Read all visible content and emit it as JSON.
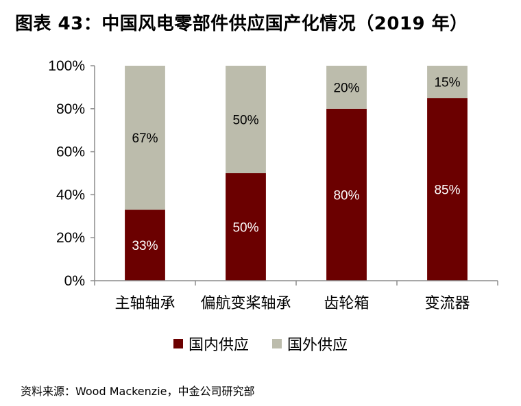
{
  "title": "图表 43：中国风电零部件供应国产化情况（2019 年）",
  "source": "资料来源：Wood Mackenzie，中金公司研究部",
  "colors": {
    "domestic": "#6b0000",
    "foreign": "#bcbcac",
    "axis": "#8c8c8c"
  },
  "chart_data": {
    "type": "bar",
    "stacked": true,
    "title": "图表 43：中国风电零部件供应国产化情况（2019 年）",
    "categories": [
      "主轴轴承",
      "偏航变桨轴承",
      "齿轮箱",
      "变流器"
    ],
    "series": [
      {
        "name": "国内供应",
        "values": [
          33,
          50,
          80,
          85
        ],
        "labels": [
          "33%",
          "50%",
          "80%",
          "85%"
        ]
      },
      {
        "name": "国外供应",
        "values": [
          67,
          50,
          20,
          15
        ],
        "labels": [
          "67%",
          "50%",
          "20%",
          "15%"
        ]
      }
    ],
    "ylim": [
      0,
      100
    ],
    "yticks": [
      0,
      20,
      40,
      60,
      80,
      100
    ],
    "ytick_labels": [
      "0%",
      "20%",
      "40%",
      "60%",
      "80%",
      "100%"
    ],
    "legend_position": "bottom",
    "grid": false
  }
}
